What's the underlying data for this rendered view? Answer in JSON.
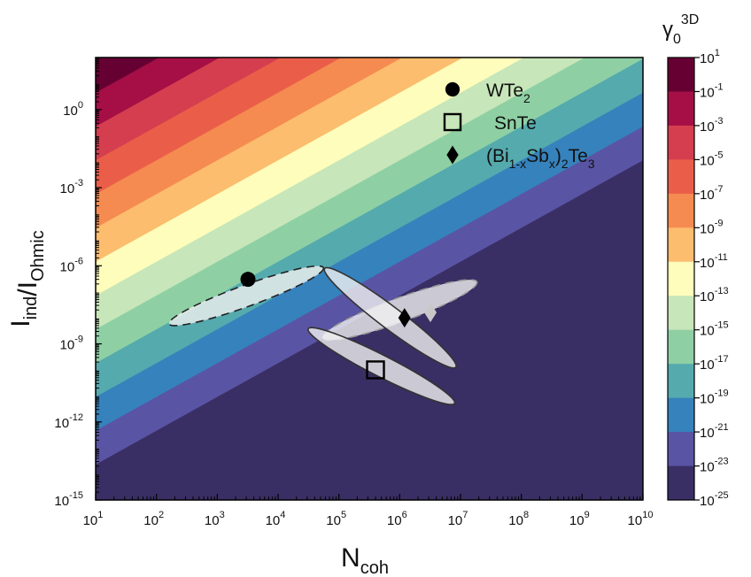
{
  "chart_data": {
    "type": "heatmap",
    "title": "",
    "x_axis": {
      "label": "N",
      "label_subscript": "coh",
      "scale": "log",
      "range": [
        10,
        10000000000
      ],
      "ticks": [
        {
          "base": "10",
          "exp": "1"
        },
        {
          "base": "10",
          "exp": "2"
        },
        {
          "base": "10",
          "exp": "3"
        },
        {
          "base": "10",
          "exp": "4"
        },
        {
          "base": "10",
          "exp": "5"
        },
        {
          "base": "10",
          "exp": "6"
        },
        {
          "base": "10",
          "exp": "7"
        },
        {
          "base": "10",
          "exp": "8"
        },
        {
          "base": "10",
          "exp": "9"
        },
        {
          "base": "10",
          "exp": "10"
        }
      ]
    },
    "y_axis": {
      "label_parts": [
        {
          "text": "I",
          "sub": "ind"
        },
        {
          "text": "/I",
          "sub": "Ohmic"
        }
      ],
      "scale": "log",
      "range": [
        1e-15,
        100
      ],
      "ticks": [
        {
          "base": "10",
          "exp": "-15"
        },
        {
          "base": "10",
          "exp": "-12"
        },
        {
          "base": "10",
          "exp": "-9"
        },
        {
          "base": "10",
          "exp": "-6"
        },
        {
          "base": "10",
          "exp": "-3"
        },
        {
          "base": "10",
          "exp": "0"
        }
      ]
    },
    "colorbar": {
      "label": "γ",
      "label_sub": "0",
      "label_sup": "3D",
      "ticks": [
        {
          "base": "10",
          "exp": "1"
        },
        {
          "base": "10",
          "exp": "-1"
        },
        {
          "base": "10",
          "exp": "-3"
        },
        {
          "base": "10",
          "exp": "-5"
        },
        {
          "base": "10",
          "exp": "-7"
        },
        {
          "base": "10",
          "exp": "-9"
        },
        {
          "base": "10",
          "exp": "-11"
        },
        {
          "base": "10",
          "exp": "-13"
        },
        {
          "base": "10",
          "exp": "-15"
        },
        {
          "base": "10",
          "exp": "-17"
        },
        {
          "base": "10",
          "exp": "-19"
        },
        {
          "base": "10",
          "exp": "-21"
        },
        {
          "base": "10",
          "exp": "-23"
        },
        {
          "base": "10",
          "exp": "-25"
        }
      ],
      "colors_top_to_bottom": [
        "#660033",
        "#a50f46",
        "#d53e4f",
        "#ea5e49",
        "#f58b50",
        "#fcbd6e",
        "#fefdbb",
        "#c7e6b9",
        "#8ed0a4",
        "#55aaae",
        "#3682bc",
        "#5a54a5",
        "#3a2f64"
      ]
    },
    "contour_model": {
      "description": "log10(gamma) contours, linear in log10(N) and log10(I ratio)",
      "log_gamma_at_N10_I1e2": 1.1,
      "d_log_gamma_d_log_N": -2,
      "d_log_gamma_d_log_I": 1.54
    },
    "legend": {
      "position": "top-right",
      "entries": [
        {
          "marker": "circle",
          "text": "WTe",
          "sub": "2"
        },
        {
          "marker": "square",
          "text": "SnTe"
        },
        {
          "marker": "diamond",
          "text_parts": [
            {
              "t": "(Bi"
            },
            {
              "sub": "1-x"
            },
            {
              "t": "Sb"
            },
            {
              "sub": "x"
            },
            {
              "t": ")"
            },
            {
              "sub": "2"
            },
            {
              "t": "Te"
            },
            {
              "sub": "3"
            }
          ]
        }
      ]
    },
    "points": [
      {
        "series": "WTe2",
        "marker": "circle",
        "x": 3200,
        "y": 3e-07,
        "color": "#000000"
      },
      {
        "series": "SnTe",
        "marker": "square",
        "x": 400000,
        "y": 1e-10,
        "color": "#000000"
      },
      {
        "series": "(Bi1-xSbx)2Te3",
        "marker": "diamond",
        "x": 1200000,
        "y": 1e-08,
        "color": "#000000"
      },
      {
        "series": "(Bi1-xSbx)2Te3",
        "marker": "diamond",
        "x": 3200000,
        "y": 1.6e-08,
        "color": "#c8c8c8"
      }
    ],
    "ellipses": [
      {
        "series": "WTe2",
        "center_x": 3000,
        "center_y": 7e-08,
        "log_rx": 1.35,
        "log_ry": 0.82,
        "angle_deg": -20,
        "stroke": "dashed",
        "stroke_color": "#222222"
      },
      {
        "series": "(Bi1-xSbx)2Te3",
        "center_x": 1000000,
        "center_y": 2e-08,
        "log_rx": 1.35,
        "log_ry": 0.92,
        "angle_deg": -20,
        "stroke": "dashed",
        "stroke_color": "#999999"
      },
      {
        "series": "(Bi1-xSbx)2Te3",
        "center_x": 700000,
        "center_y": 1e-08,
        "log_rx": 1.35,
        "log_ry": 0.85,
        "angle_deg": 37,
        "stroke": "solid",
        "stroke_color": "#333333"
      },
      {
        "series": "SnTe",
        "center_x": 500000,
        "center_y": 1.4e-10,
        "log_rx": 1.35,
        "log_ry": 0.82,
        "angle_deg": 27,
        "stroke": "solid",
        "stroke_color": "#333333"
      }
    ]
  }
}
